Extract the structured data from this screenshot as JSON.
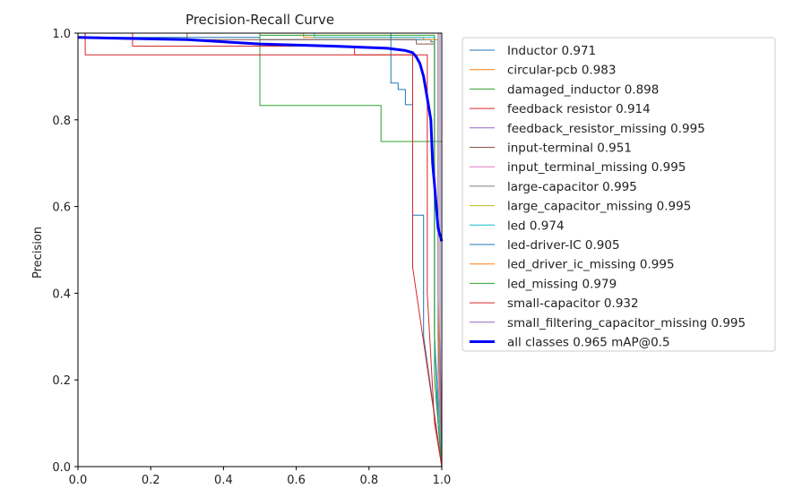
{
  "chart_data": {
    "type": "line",
    "title": "Precision-Recall Curve",
    "xlabel": "",
    "ylabel": "Precision",
    "xlim": [
      0,
      1
    ],
    "ylim": [
      0,
      1
    ],
    "xticks": [
      "0.0",
      "0.2",
      "0.4",
      "0.6",
      "0.8",
      "1.0"
    ],
    "yticks": [
      "0.0",
      "0.2",
      "0.4",
      "0.6",
      "0.8",
      "1.0"
    ],
    "legend_position": "outside-right",
    "grid": false,
    "series": [
      {
        "name": "Inductor 0.971",
        "color": "#1f77b4",
        "width": 1,
        "points": [
          [
            0,
            1
          ],
          [
            0.02,
            1
          ],
          [
            0.02,
            0.99
          ],
          [
            0.5,
            0.99
          ],
          [
            0.5,
            0.985
          ],
          [
            0.97,
            0.985
          ],
          [
            0.97,
            0.98
          ],
          [
            0.98,
            0.98
          ],
          [
            0.98,
            0.3
          ],
          [
            0.99,
            0.1
          ],
          [
            1,
            0
          ]
        ]
      },
      {
        "name": "circular-pcb 0.983",
        "color": "#ff7f0e",
        "width": 1,
        "points": [
          [
            0,
            1
          ],
          [
            0.62,
            1
          ],
          [
            0.62,
            0.99
          ],
          [
            0.95,
            0.99
          ],
          [
            0.95,
            0.985
          ],
          [
            0.99,
            0.985
          ],
          [
            0.99,
            0.4
          ],
          [
            1,
            0
          ]
        ]
      },
      {
        "name": "damaged_inductor 0.898",
        "color": "#2ca02c",
        "width": 1,
        "points": [
          [
            0,
            1
          ],
          [
            0.5,
            1
          ],
          [
            0.5,
            0.833
          ],
          [
            0.833,
            0.833
          ],
          [
            0.833,
            0.75
          ],
          [
            1,
            0.75
          ],
          [
            1,
            0
          ]
        ]
      },
      {
        "name": "feedback resistor 0.914",
        "color": "#d62728",
        "width": 1,
        "points": [
          [
            0,
            1
          ],
          [
            0.15,
            1
          ],
          [
            0.15,
            0.97
          ],
          [
            0.76,
            0.97
          ],
          [
            0.76,
            0.95
          ],
          [
            0.96,
            0.95
          ],
          [
            0.96,
            0.4
          ],
          [
            0.98,
            0.1
          ],
          [
            1,
            0
          ]
        ]
      },
      {
        "name": "feedback_resistor_missing 0.995",
        "color": "#9467bd",
        "width": 1,
        "points": [
          [
            0,
            1
          ],
          [
            0.995,
            1
          ],
          [
            0.995,
            0.3
          ],
          [
            1,
            0
          ]
        ]
      },
      {
        "name": "input-terminal 0.951",
        "color": "#8c564b",
        "width": 1,
        "points": [
          [
            0,
            1
          ],
          [
            0.3,
            1
          ],
          [
            0.3,
            0.985
          ],
          [
            0.93,
            0.985
          ],
          [
            0.93,
            0.975
          ],
          [
            0.98,
            0.975
          ],
          [
            0.98,
            0.3
          ],
          [
            1,
            0
          ]
        ]
      },
      {
        "name": "input_terminal_missing 0.995",
        "color": "#e377c2",
        "width": 1,
        "points": [
          [
            0,
            1
          ],
          [
            0.99,
            1
          ],
          [
            0.99,
            0.2
          ],
          [
            1,
            0
          ]
        ]
      },
      {
        "name": "large-capacitor 0.995",
        "color": "#7f7f7f",
        "width": 1,
        "points": [
          [
            0,
            1
          ],
          [
            0.99,
            1
          ],
          [
            0.99,
            0.3
          ],
          [
            1,
            0
          ]
        ]
      },
      {
        "name": "large_capacitor_missing 0.995",
        "color": "#bcbd22",
        "width": 1,
        "points": [
          [
            0,
            1
          ],
          [
            0.995,
            1
          ],
          [
            0.995,
            0.2
          ],
          [
            1,
            0
          ]
        ]
      },
      {
        "name": "led 0.974",
        "color": "#17becf",
        "width": 1,
        "points": [
          [
            0,
            1
          ],
          [
            0.65,
            1
          ],
          [
            0.65,
            0.99
          ],
          [
            0.98,
            0.99
          ],
          [
            0.98,
            0.3
          ],
          [
            1,
            0
          ]
        ]
      },
      {
        "name": "led-driver-IC 0.905",
        "color": "#1f77b4",
        "width": 1,
        "points": [
          [
            0,
            1
          ],
          [
            0.86,
            1
          ],
          [
            0.86,
            0.885
          ],
          [
            0.88,
            0.885
          ],
          [
            0.88,
            0.87
          ],
          [
            0.9,
            0.87
          ],
          [
            0.9,
            0.835
          ],
          [
            0.92,
            0.835
          ],
          [
            0.92,
            0.58
          ],
          [
            0.95,
            0.58
          ],
          [
            0.95,
            0.3
          ],
          [
            1,
            0
          ]
        ]
      },
      {
        "name": "led_driver_ic_missing 0.995",
        "color": "#ff7f0e",
        "width": 1,
        "points": [
          [
            0,
            1
          ],
          [
            0.995,
            1
          ],
          [
            0.995,
            0.2
          ],
          [
            1,
            0
          ]
        ]
      },
      {
        "name": "led_missing 0.979",
        "color": "#2ca02c",
        "width": 1,
        "points": [
          [
            0,
            1
          ],
          [
            0.5,
            1
          ],
          [
            0.5,
            0.995
          ],
          [
            0.98,
            0.995
          ],
          [
            0.98,
            0.2
          ],
          [
            1,
            0
          ]
        ]
      },
      {
        "name": "small-capacitor 0.932",
        "color": "#d62728",
        "width": 1,
        "points": [
          [
            0,
            1
          ],
          [
            0.02,
            1
          ],
          [
            0.02,
            0.95
          ],
          [
            0.92,
            0.95
          ],
          [
            0.92,
            0.46
          ],
          [
            1,
            0
          ]
        ]
      },
      {
        "name": "small_filtering_capacitor_missing 0.995",
        "color": "#9467bd",
        "width": 1,
        "points": [
          [
            0,
            1
          ],
          [
            0.995,
            1
          ],
          [
            0.995,
            0.3
          ],
          [
            1,
            0
          ]
        ]
      },
      {
        "name": "all classes 0.965 mAP@0.5",
        "color": "#0000ff",
        "width": 3,
        "points": [
          [
            0,
            0.99
          ],
          [
            0.3,
            0.985
          ],
          [
            0.5,
            0.975
          ],
          [
            0.7,
            0.97
          ],
          [
            0.85,
            0.965
          ],
          [
            0.9,
            0.96
          ],
          [
            0.92,
            0.955
          ],
          [
            0.93,
            0.945
          ],
          [
            0.94,
            0.93
          ],
          [
            0.95,
            0.9
          ],
          [
            0.96,
            0.85
          ],
          [
            0.97,
            0.8
          ],
          [
            0.975,
            0.7
          ],
          [
            0.98,
            0.65
          ],
          [
            0.985,
            0.6
          ],
          [
            0.99,
            0.55
          ],
          [
            1,
            0.52
          ]
        ]
      }
    ]
  }
}
